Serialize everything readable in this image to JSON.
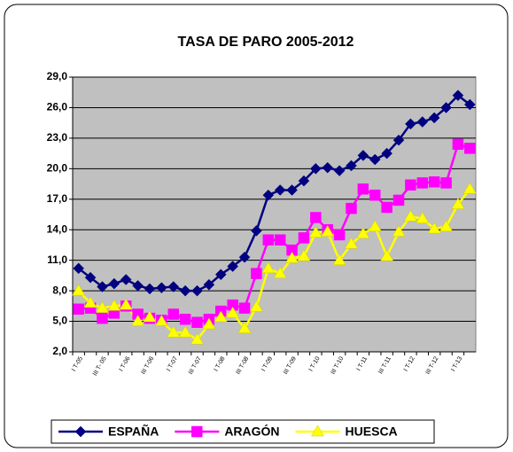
{
  "chart_data": {
    "type": "line",
    "title": "TASA DE PARO 2005-2012",
    "categories": [
      "I T-05",
      null,
      "III T- 05",
      null,
      "I T-06",
      null,
      "III T-06",
      null,
      "I T-07",
      null,
      "III T-07",
      null,
      "I T-08",
      null,
      "III T-08",
      null,
      "I T-09",
      null,
      "III T-09",
      null,
      "I T-10",
      null,
      "III T-10",
      null,
      "I T-11",
      null,
      "III T-11",
      null,
      "I T-12",
      null,
      "III T-12",
      null,
      "I T-13",
      null
    ],
    "series": [
      {
        "name": "ESPAÑA",
        "color": "#000080",
        "marker": "diamond",
        "values": [
          10.2,
          9.3,
          8.4,
          8.7,
          9.1,
          8.5,
          8.2,
          8.3,
          8.4,
          8.0,
          8.0,
          8.6,
          9.6,
          10.4,
          11.3,
          13.9,
          17.4,
          17.9,
          17.9,
          18.8,
          20.0,
          20.1,
          19.8,
          20.3,
          21.3,
          20.9,
          21.5,
          22.8,
          24.4,
          24.6,
          25.0,
          26.0,
          27.2,
          26.3
        ]
      },
      {
        "name": "ARAGÓN",
        "color": "#ff00ff",
        "marker": "square",
        "values": [
          6.2,
          6.3,
          5.3,
          5.8,
          6.5,
          5.7,
          5.3,
          5.1,
          5.7,
          5.2,
          4.9,
          5.2,
          6.0,
          6.6,
          6.3,
          9.7,
          13.0,
          13.0,
          12.0,
          13.2,
          15.2,
          14.0,
          13.5,
          16.1,
          18.0,
          17.4,
          16.2,
          16.9,
          18.4,
          18.6,
          18.7,
          18.6,
          22.4,
          22.0
        ]
      },
      {
        "name": "HUESCA",
        "color": "#ffff00",
        "marker": "triangle",
        "values": [
          8.0,
          6.8,
          6.3,
          6.5,
          6.6,
          5.0,
          5.4,
          5.0,
          3.9,
          3.9,
          3.2,
          4.7,
          5.4,
          5.8,
          4.3,
          6.4,
          10.2,
          9.7,
          11.2,
          11.4,
          13.7,
          13.8,
          11.0,
          12.6,
          13.6,
          14.3,
          11.4,
          13.8,
          15.3,
          15.1,
          14.1,
          14.3,
          16.5,
          18.0
        ]
      }
    ],
    "ylim": [
      2,
      29
    ],
    "yticks": [
      {
        "value": 2,
        "label": "2,0"
      },
      {
        "value": 5,
        "label": "5,0"
      },
      {
        "value": 8,
        "label": "8,0"
      },
      {
        "value": 11,
        "label": "11,0"
      },
      {
        "value": 14,
        "label": "14,0"
      },
      {
        "value": 17,
        "label": "17,0"
      },
      {
        "value": 20,
        "label": "20,0"
      },
      {
        "value": 23,
        "label": "23,0"
      },
      {
        "value": 26,
        "label": "26,0"
      },
      {
        "value": 29,
        "label": "29,0"
      }
    ],
    "grid": true,
    "plot_background": "#c0c0c0",
    "legend": "bottom"
  }
}
